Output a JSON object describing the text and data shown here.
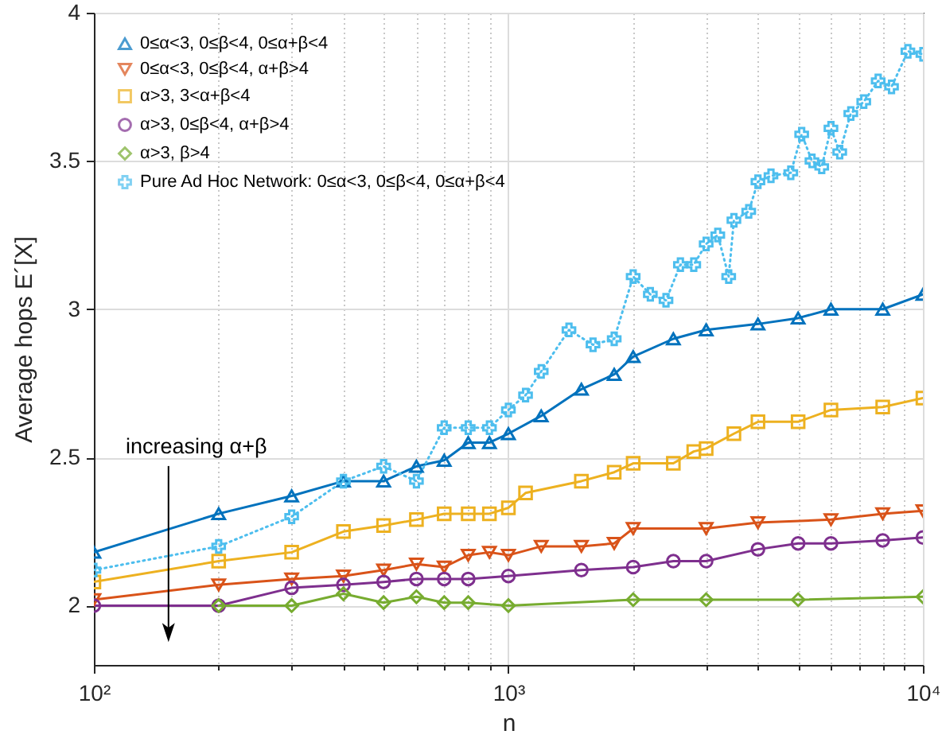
{
  "chart_data": {
    "type": "line",
    "xlabel": "n",
    "ylabel": "Average hops E´[X]",
    "log": "x",
    "grid": true,
    "legend": "top left",
    "xlim": [
      100,
      10000
    ],
    "xticks": [
      {
        "value": 100,
        "label": "10²"
      },
      {
        "value": 200,
        "label": null
      },
      {
        "value": 300,
        "label": null
      },
      {
        "value": 400,
        "label": null
      },
      {
        "value": 500,
        "label": null
      },
      {
        "value": 600,
        "label": null
      },
      {
        "value": 700,
        "label": null
      },
      {
        "value": 800,
        "label": null
      },
      {
        "value": 900,
        "label": null
      },
      {
        "value": 1000,
        "label": "10³"
      },
      {
        "value": 2000,
        "label": null
      },
      {
        "value": 3000,
        "label": null
      },
      {
        "value": 4000,
        "label": null
      },
      {
        "value": 5000,
        "label": null
      },
      {
        "value": 6000,
        "label": null
      },
      {
        "value": 7000,
        "label": null
      },
      {
        "value": 8000,
        "label": null
      },
      {
        "value": 9000,
        "label": null
      },
      {
        "value": 10000,
        "label": "10⁴"
      }
    ],
    "ylim": [
      1.8,
      4
    ],
    "yticks": [
      2,
      2.5,
      3,
      3.5,
      4
    ],
    "annotations": [
      "increasing α+β"
    ],
    "series": [
      {
        "name": "0≤α<3, 0≤β<4, 0≤α+β<4",
        "color": "#0072bd",
        "marker": "triangle",
        "line_style": "solid",
        "x": [
          100,
          200,
          300,
          400,
          500,
          600,
          700,
          800,
          900,
          1000,
          1200,
          1500,
          1800,
          2000,
          2500,
          3000,
          4000,
          5000,
          6000,
          8000,
          10000
        ],
        "values": [
          2.18,
          2.31,
          2.37,
          2.42,
          2.42,
          2.47,
          2.49,
          2.55,
          2.55,
          2.58,
          2.64,
          2.73,
          2.78,
          2.84,
          2.9,
          2.93,
          2.95,
          2.97,
          3.0,
          3.0,
          3.05
        ]
      },
      {
        "name": "0≤α<3, 0≤β<4, α+β>4",
        "color": "#d95319",
        "marker": "triangle-down",
        "line_style": "solid",
        "x": [
          100,
          200,
          300,
          400,
          500,
          600,
          700,
          800,
          900,
          1000,
          1200,
          1500,
          1800,
          2000,
          3000,
          4000,
          6000,
          8000,
          10000
        ],
        "values": [
          2.02,
          2.07,
          2.09,
          2.1,
          2.12,
          2.14,
          2.13,
          2.17,
          2.18,
          2.17,
          2.2,
          2.2,
          2.21,
          2.26,
          2.26,
          2.28,
          2.29,
          2.31,
          2.32
        ]
      },
      {
        "name": "α>3, 3<α+β<4",
        "color": "#edb120",
        "marker": "square",
        "line_style": "solid",
        "x": [
          100,
          200,
          300,
          400,
          500,
          600,
          700,
          800,
          900,
          1000,
          1100,
          1500,
          1800,
          2000,
          2500,
          2800,
          3000,
          3500,
          4000,
          5000,
          6000,
          8000,
          10000
        ],
        "values": [
          2.08,
          2.15,
          2.18,
          2.25,
          2.27,
          2.29,
          2.31,
          2.31,
          2.31,
          2.33,
          2.38,
          2.42,
          2.45,
          2.48,
          2.48,
          2.52,
          2.53,
          2.58,
          2.62,
          2.62,
          2.66,
          2.67,
          2.7
        ]
      },
      {
        "name": "α>3, 0≤β<4, α+β>4",
        "color": "#7e2f8e",
        "marker": "circle",
        "line_style": "solid",
        "x": [
          100,
          200,
          300,
          400,
          500,
          600,
          700,
          800,
          1000,
          1500,
          2000,
          2500,
          3000,
          4000,
          5000,
          6000,
          8000,
          10000
        ],
        "values": [
          2.0,
          2.0,
          2.06,
          2.07,
          2.08,
          2.09,
          2.09,
          2.09,
          2.1,
          2.12,
          2.13,
          2.15,
          2.15,
          2.19,
          2.21,
          2.21,
          2.22,
          2.23
        ]
      },
      {
        "name": "α>3, β>4",
        "color": "#77ac30",
        "marker": "diamond",
        "line_style": "solid",
        "x": [
          200,
          300,
          400,
          500,
          600,
          700,
          800,
          1000,
          2000,
          3000,
          5000,
          10000
        ],
        "values": [
          2.0,
          2.0,
          2.04,
          2.01,
          2.03,
          2.01,
          2.01,
          2.0,
          2.02,
          2.02,
          2.02,
          2.03
        ]
      },
      {
        "name": "Pure Ad Hoc Network: 0≤α<3, 0≤β<4, 0≤α+β<4",
        "color": "#4dbeee",
        "marker": "cross",
        "line_style": "dotted",
        "x": [
          100,
          200,
          300,
          400,
          500,
          600,
          700,
          800,
          900,
          1000,
          1100,
          1200,
          1400,
          1600,
          1800,
          2000,
          2200,
          2400,
          2600,
          2800,
          3000,
          3200,
          3400,
          3500,
          3800,
          4000,
          4300,
          4800,
          5100,
          5400,
          5700,
          6000,
          6300,
          6700,
          7200,
          7800,
          8400,
          9200,
          10000
        ],
        "values": [
          2.12,
          2.2,
          2.3,
          2.42,
          2.47,
          2.42,
          2.6,
          2.6,
          2.6,
          2.66,
          2.71,
          2.79,
          2.93,
          2.88,
          2.9,
          3.11,
          3.05,
          3.03,
          3.15,
          3.15,
          3.22,
          3.25,
          3.11,
          3.3,
          3.33,
          3.43,
          3.45,
          3.46,
          3.59,
          3.5,
          3.48,
          3.61,
          3.53,
          3.66,
          3.7,
          3.77,
          3.75,
          3.87,
          3.86
        ]
      }
    ]
  }
}
